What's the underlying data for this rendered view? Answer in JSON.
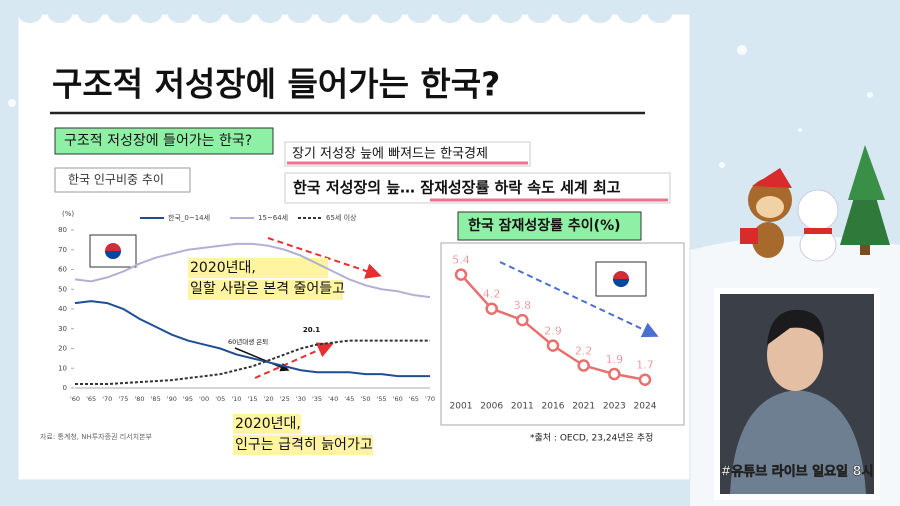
{
  "slide": {
    "title": "구조적 저성장에 들어가는 한국?",
    "tag": "구조적 저성장에 들어가는 한국?",
    "headlines": [
      "장기 저성장 늪에 빠져드는 한국경제",
      "한국 저성장의 늪… 잠재성장률 하락 속도 세계 최고"
    ]
  },
  "chart_data": [
    {
      "type": "line",
      "title": "한국 인구비중 추이",
      "y_label": "(%)",
      "categories": [
        "'60",
        "'65",
        "'70",
        "'75",
        "'80",
        "'85",
        "'90",
        "'95",
        "'00",
        "'05",
        "'10",
        "'15",
        "'20",
        "'25",
        "'30",
        "'35",
        "'40",
        "'45",
        "'50",
        "'55",
        "'60",
        "'65",
        "'70"
      ],
      "series": [
        {
          "name": "한국_0~14세",
          "color": "#1f4e96",
          "dashed": false,
          "values": [
            43,
            44,
            43,
            40,
            35,
            31,
            27,
            24,
            22,
            20,
            17,
            15,
            13,
            11,
            9,
            8,
            8,
            8,
            7,
            7,
            6,
            6,
            6
          ]
        },
        {
          "name": "15~64세",
          "color": "#b3afd3",
          "dashed": false,
          "values": [
            55,
            54,
            56,
            59,
            63,
            66,
            68,
            70,
            71,
            72,
            73,
            73,
            72,
            70,
            67,
            63,
            59,
            55,
            52,
            50,
            49,
            47,
            46
          ]
        },
        {
          "name": "65세 이상",
          "color": "#333333",
          "dashed": true,
          "values": [
            2,
            2,
            2,
            2.5,
            3,
            3.5,
            4,
            5,
            6,
            7,
            9,
            11,
            14,
            17,
            20,
            22,
            23,
            24,
            24,
            24,
            24,
            24,
            24
          ]
        }
      ],
      "ylim": [
        0,
        80
      ],
      "yticks": [
        0,
        10,
        20,
        30,
        40,
        50,
        60,
        70,
        80
      ],
      "grid": false,
      "annotations": [
        "20.1",
        "60년대생 은퇴"
      ],
      "callouts": [
        [
          "2020년대,",
          "일할 사람은 본격 줄어들고"
        ],
        [
          "2020년대,",
          "인구는 급격히 늙어가고"
        ]
      ],
      "source": "자료: 통계청, NH투자증권 리서치본부"
    },
    {
      "type": "line",
      "title": "한국 잠재성장률 추이(%)",
      "color": "#e8706f",
      "categories": [
        "2001",
        "2006",
        "2011",
        "2016",
        "2021",
        "2023",
        "2024"
      ],
      "values": [
        5.4,
        4.2,
        3.8,
        2.9,
        2.2,
        1.9,
        1.7
      ],
      "source": "*출처 : OECD, 23,24년은 추정"
    }
  ],
  "overlay": {
    "caption": "#유튜브 라이브 일요일 8시"
  }
}
